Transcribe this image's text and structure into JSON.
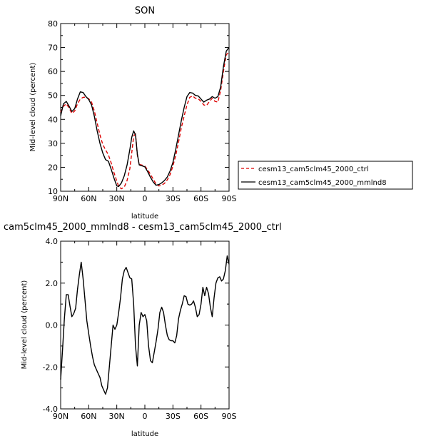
{
  "chart_data": [
    {
      "type": "line",
      "title": "SON",
      "xlabel": "latitude",
      "ylabel": "Mid-level cloud (percent)",
      "xlim": [
        90,
        -90
      ],
      "ylim": [
        10,
        80
      ],
      "xticks": [
        90,
        60,
        30,
        0,
        -30,
        -60,
        -90
      ],
      "xtick_labels": [
        "90N",
        "60N",
        "30N",
        "0",
        "30S",
        "60S",
        "90S"
      ],
      "yticks": [
        10,
        20,
        30,
        40,
        50,
        60,
        70,
        80
      ],
      "ytick_labels": [
        "10",
        "20",
        "30",
        "40",
        "50",
        "60",
        "70",
        "80"
      ],
      "legend": "right",
      "series": [
        {
          "name": "cesm13_cam5clm45_2000_ctrl",
          "color": "#dd0000",
          "dash": "dashed",
          "x": [
            90,
            87,
            84,
            81,
            78,
            75,
            72,
            69,
            66,
            63,
            60,
            57,
            54,
            51,
            48,
            45,
            42,
            39,
            36,
            33,
            30,
            28,
            25,
            22,
            19,
            16,
            14,
            12,
            10,
            8,
            6,
            4,
            2,
            0,
            -3,
            -6,
            -9,
            -12,
            -15,
            -18,
            -21,
            -24,
            -27,
            -30,
            -33,
            -36,
            -39,
            -42,
            -45,
            -48,
            -51,
            -54,
            -57,
            -60,
            -63,
            -66,
            -69,
            -72,
            -75,
            -78,
            -81,
            -84,
            -87,
            -90
          ],
          "y": [
            43,
            45.5,
            46.5,
            44.8,
            42.5,
            43.5,
            46.5,
            48.5,
            49.2,
            49.3,
            48.6,
            47.2,
            43.5,
            38.5,
            33.5,
            29.5,
            27.3,
            25.2,
            21.8,
            17.8,
            14.2,
            12,
            11,
            11.8,
            14.5,
            19.5,
            26,
            33,
            34,
            25,
            21.2,
            21,
            20.8,
            20.5,
            19,
            17,
            15,
            13,
            12.2,
            12.5,
            13.3,
            14.8,
            17,
            20.5,
            25,
            30.5,
            36.5,
            41.5,
            46,
            49.2,
            49.8,
            48.8,
            48.6,
            47.5,
            46,
            45.8,
            47.5,
            48.8,
            47.5,
            47.2,
            52,
            60,
            67,
            68
          ]
        },
        {
          "name": "cesm13_cam5clm45_2000_mmlnd8",
          "color": "#000000",
          "dash": "solid",
          "x": [
            90,
            87,
            84,
            81,
            78,
            75,
            72,
            69,
            66,
            63,
            60,
            57,
            54,
            51,
            48,
            45,
            42,
            39,
            36,
            33,
            30,
            28,
            25,
            22,
            19,
            16,
            14,
            12,
            10,
            8,
            6,
            4,
            2,
            0,
            -3,
            -6,
            -9,
            -12,
            -15,
            -18,
            -21,
            -24,
            -27,
            -30,
            -33,
            -36,
            -39,
            -42,
            -45,
            -48,
            -51,
            -54,
            -57,
            -60,
            -63,
            -66,
            -69,
            -72,
            -75,
            -78,
            -81,
            -84,
            -87,
            -90
          ],
          "y": [
            41.5,
            46.5,
            47.5,
            45.5,
            43.3,
            44.5,
            48.5,
            51.5,
            51.2,
            49.5,
            48.3,
            46,
            41.3,
            35.3,
            30,
            26,
            23.2,
            22.5,
            19.2,
            15.5,
            12.2,
            12,
            13.5,
            16.5,
            21,
            27.5,
            32.5,
            35.2,
            33.5,
            25.5,
            21,
            20.7,
            20.5,
            20.2,
            18.2,
            15.8,
            13.8,
            12.5,
            12.8,
            13.5,
            14.5,
            16,
            18.5,
            22,
            27.5,
            33.5,
            39.5,
            45,
            49.5,
            51.2,
            51,
            50,
            49.8,
            48.5,
            47.2,
            48,
            48.5,
            49.5,
            48.8,
            49.5,
            53.5,
            62,
            68.5,
            70
          ]
        }
      ]
    },
    {
      "type": "line",
      "title": "cam5clm45_2000_mmlnd8 - cesm13_cam5clm45_2000_ctrl",
      "xlabel": "latitude",
      "ylabel": "Mid-level cloud (percent)",
      "xlim": [
        90,
        -90
      ],
      "ylim": [
        -4.0,
        4.0
      ],
      "xticks": [
        90,
        60,
        30,
        0,
        -30,
        -60,
        -90
      ],
      "xtick_labels": [
        "90N",
        "60N",
        "30N",
        "0",
        "30S",
        "60S",
        "90S"
      ],
      "yticks": [
        -4.0,
        -2.0,
        0.0,
        2.0,
        4.0
      ],
      "ytick_labels": [
        "-4.0",
        "-2.0",
        "0.0",
        "2.0",
        "4.0"
      ],
      "series": [
        {
          "color": "#000000",
          "dash": "solid",
          "x": [
            90,
            88,
            86,
            84,
            82,
            80,
            78,
            76,
            74,
            72,
            70,
            68,
            66,
            64,
            62,
            60,
            58,
            56,
            54,
            52,
            50,
            48,
            46,
            44,
            42,
            40,
            38,
            36,
            34,
            32,
            30,
            28,
            26,
            24,
            22,
            20,
            18,
            16,
            14,
            12,
            10,
            8,
            6,
            4,
            2,
            0,
            -2,
            -4,
            -6,
            -8,
            -10,
            -12,
            -14,
            -16,
            -18,
            -20,
            -22,
            -24,
            -26,
            -28,
            -30,
            -32,
            -34,
            -36,
            -38,
            -40,
            -42,
            -44,
            -46,
            -48,
            -50,
            -52,
            -54,
            -56,
            -58,
            -60,
            -62,
            -64,
            -66,
            -68,
            -70,
            -72,
            -74,
            -76,
            -78,
            -80,
            -82,
            -84,
            -86,
            -88,
            -90
          ],
          "y": [
            -2.6,
            -1.2,
            0.3,
            1.45,
            1.45,
            0.9,
            0.4,
            0.55,
            0.8,
            1.7,
            2.4,
            3.0,
            2.2,
            1.2,
            0.2,
            -0.4,
            -1.0,
            -1.5,
            -1.9,
            -2.1,
            -2.3,
            -2.5,
            -2.9,
            -3.1,
            -3.3,
            -3.0,
            -2.0,
            -1.0,
            0.0,
            -0.2,
            0.0,
            0.6,
            1.3,
            2.2,
            2.6,
            2.75,
            2.5,
            2.25,
            2.2,
            1.0,
            -1.0,
            -1.95,
            0.0,
            0.6,
            0.4,
            0.5,
            0.2,
            -1.0,
            -1.7,
            -1.8,
            -1.3,
            -0.8,
            -0.2,
            0.6,
            0.85,
            0.6,
            0.0,
            -0.5,
            -0.7,
            -0.75,
            -0.75,
            -0.85,
            -0.5,
            0.3,
            0.7,
            1.0,
            1.4,
            1.35,
            1.0,
            0.95,
            1.0,
            1.15,
            0.85,
            0.4,
            0.5,
            1.0,
            1.8,
            1.4,
            1.8,
            1.5,
            0.85,
            0.4,
            1.3,
            2.0,
            2.25,
            2.3,
            2.1,
            2.2,
            2.6,
            3.3,
            2.9
          ]
        }
      ]
    }
  ]
}
